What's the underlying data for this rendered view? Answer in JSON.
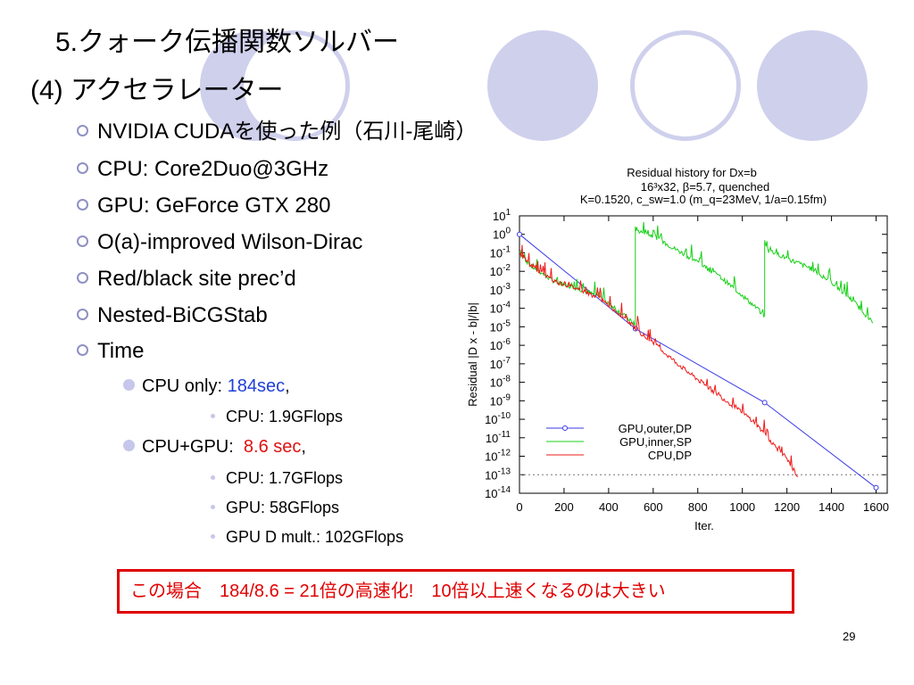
{
  "slide": {
    "title": "5.クォーク伝播関数ソルバー",
    "subtitle": "(4) アクセラレーター",
    "page_number": "29"
  },
  "bullets": [
    "NVIDIA CUDAを使った例（石川-尾崎）",
    "CPU: Core2Duo@3GHz",
    "GPU: GeForce GTX 280",
    "O(a)-improved Wilson-Dirac",
    "Red/black site prec’d",
    "Nested-BiCGStab",
    "Time"
  ],
  "time": {
    "cpu_only_label": "CPU only: ",
    "cpu_only_value": "184sec",
    "cpu_only_suffix": ",",
    "cpu_only_detail": "CPU: 1.9GFlops",
    "cpu_gpu_label": "CPU+GPU:  ",
    "cpu_gpu_value": "8.6 sec",
    "cpu_gpu_suffix": ",",
    "cpu_gpu_details": [
      "CPU: 1.7GFlops",
      "GPU: 58GFlops",
      "GPU D mult.: 102GFlops"
    ]
  },
  "callout": "この場合　184/8.6 = 21倍の高速化!　10倍以上速くなるのは大きい",
  "colors": {
    "accent": "#cfd0ec",
    "value_blue": "#1f3fd8",
    "value_red": "#e01010",
    "gpu_outer": "#3a3ae8",
    "gpu_inner": "#18d018",
    "cpu": "#ee1a1a"
  },
  "chart_data": {
    "type": "line",
    "title_lines": [
      "Residual history for Dx=b",
      "16³x32, β=5.7, quenched",
      "K=0.1520, c_sw=1.0 (m_q=23MeV, 1/a=0.15fm)"
    ],
    "xlabel": "Iter.",
    "ylabel": "Residual  |D x - b|/|b|",
    "xlim": [
      0,
      1650
    ],
    "ylim_log10": [
      -14,
      1
    ],
    "y_scale": "log",
    "x_ticks": [
      "0",
      "200",
      "400",
      "600",
      "800",
      "1000",
      "1200",
      "1400",
      "1600"
    ],
    "y_ticks": [
      "10^1",
      "10^0",
      "10^-1",
      "10^-2",
      "10^-3",
      "10^-4",
      "10^-5",
      "10^-6",
      "10^-7",
      "10^-8",
      "10^-9",
      "10^-10",
      "10^-11",
      "10^-12",
      "10^-13",
      "10^-14"
    ],
    "reference_line_log10": -13,
    "legend_position": "bottom-left",
    "series": [
      {
        "name": "GPU,outer,DP",
        "color": "#3a3ae8",
        "style": "line+markers",
        "x": [
          0,
          520,
          1100,
          1600
        ],
        "log10_y": [
          0,
          -5.1,
          -9.1,
          -13.7
        ]
      },
      {
        "name": "GPU,inner,SP",
        "color": "#18d018",
        "style": "noisy-line",
        "x": [
          0,
          50,
          150,
          250,
          350,
          450,
          520,
          520,
          530,
          600,
          700,
          800,
          900,
          1000,
          1100,
          1100,
          1110,
          1200,
          1300,
          1400,
          1470,
          1530,
          1585
        ],
        "log10_y": [
          -1,
          -1.7,
          -2.5,
          -2.9,
          -3.3,
          -4.2,
          -4.9,
          0.4,
          0.2,
          -0.1,
          -0.8,
          -1.5,
          -2.3,
          -3.3,
          -4.4,
          -0.4,
          -0.8,
          -1.3,
          -1.8,
          -2.6,
          -3.3,
          -4.0,
          -4.8
        ]
      },
      {
        "name": "CPU,DP",
        "color": "#ee1a1a",
        "style": "noisy-line",
        "x": [
          0,
          50,
          150,
          250,
          350,
          450,
          550,
          650,
          750,
          850,
          950,
          1050,
          1150,
          1200,
          1250
        ],
        "log10_y": [
          -1,
          -1.7,
          -2.5,
          -2.9,
          -3.4,
          -4.3,
          -5.4,
          -6.4,
          -7.4,
          -8.3,
          -9.2,
          -10.1,
          -11.5,
          -12.2,
          -13.1
        ]
      }
    ]
  }
}
